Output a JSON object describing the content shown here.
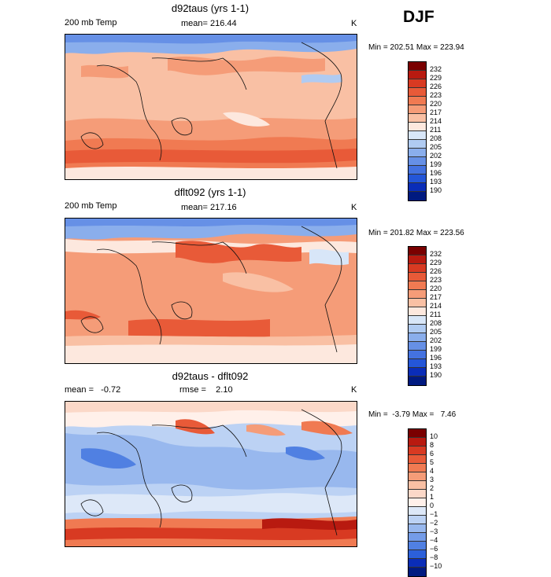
{
  "season": "DJF",
  "panels": [
    {
      "title": "d92taus (yrs 1-1)",
      "variable": "200 mb Temp",
      "mean_label": "mean= 216.44",
      "units": "K",
      "minmax": "Min = 202.51 Max = 223.94",
      "colorbar": {
        "labels": [
          "232",
          "229",
          "226",
          "223",
          "220",
          "217",
          "214",
          "211",
          "208",
          "205",
          "202",
          "199",
          "196",
          "193",
          "190"
        ],
        "colors": [
          "#7a0000",
          "#b81a10",
          "#d83a22",
          "#e85a38",
          "#f07a52",
          "#f59c78",
          "#f9c0a4",
          "#fde8de",
          "#d8e6f8",
          "#b0cbf2",
          "#8aaeec",
          "#6690e6",
          "#4472e0",
          "#2456d8",
          "#0a2db8",
          "#001a80"
        ]
      }
    },
    {
      "title": "dflt092 (yrs 1-1)",
      "variable": "200 mb Temp",
      "mean_label": "mean= 217.16",
      "units": "K",
      "minmax": "Min = 201.82 Max = 223.56",
      "colorbar": {
        "labels": [
          "232",
          "229",
          "226",
          "223",
          "220",
          "217",
          "214",
          "211",
          "208",
          "205",
          "202",
          "199",
          "196",
          "193",
          "190"
        ],
        "colors": [
          "#7a0000",
          "#b81a10",
          "#d83a22",
          "#e85a38",
          "#f07a52",
          "#f59c78",
          "#f9c0a4",
          "#fde8de",
          "#d8e6f8",
          "#b0cbf2",
          "#8aaeec",
          "#6690e6",
          "#4472e0",
          "#2456d8",
          "#0a2db8",
          "#001a80"
        ]
      }
    },
    {
      "title": "d92taus - dflt092",
      "mean_label": "mean =   -0.72",
      "rmse_label": "rmse =    2.10",
      "units": "K",
      "minmax": "Min =  -3.79 Max =   7.46",
      "colorbar": {
        "labels": [
          "10",
          "8",
          "6",
          "5",
          "4",
          "3",
          "2",
          "1",
          "0",
          "−1",
          "−2",
          "−3",
          "−4",
          "−6",
          "−8",
          "−10"
        ],
        "colors": [
          "#7a0000",
          "#b81a10",
          "#d83a22",
          "#e85a38",
          "#f07a52",
          "#f59c78",
          "#f9c0a4",
          "#fbd8c8",
          "#fff0ea",
          "#dde8f8",
          "#bcd2f4",
          "#98b8ee",
          "#749ce8",
          "#5080e2",
          "#2c60da",
          "#0a2db8",
          "#001a80"
        ]
      }
    }
  ]
}
